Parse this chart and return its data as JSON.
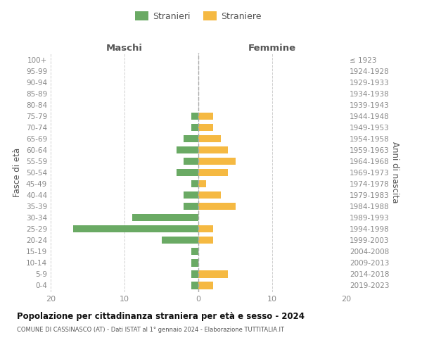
{
  "age_groups": [
    "100+",
    "95-99",
    "90-94",
    "85-89",
    "80-84",
    "75-79",
    "70-74",
    "65-69",
    "60-64",
    "55-59",
    "50-54",
    "45-49",
    "40-44",
    "35-39",
    "30-34",
    "25-29",
    "20-24",
    "15-19",
    "10-14",
    "5-9",
    "0-4"
  ],
  "birth_years": [
    "≤ 1923",
    "1924-1928",
    "1929-1933",
    "1934-1938",
    "1939-1943",
    "1944-1948",
    "1949-1953",
    "1954-1958",
    "1959-1963",
    "1964-1968",
    "1969-1973",
    "1974-1978",
    "1979-1983",
    "1984-1988",
    "1989-1993",
    "1994-1998",
    "1999-2003",
    "2004-2008",
    "2009-2013",
    "2014-2018",
    "2019-2023"
  ],
  "males": [
    0,
    0,
    0,
    0,
    0,
    1,
    1,
    2,
    3,
    2,
    3,
    1,
    2,
    2,
    9,
    17,
    5,
    1,
    1,
    1,
    1
  ],
  "females": [
    0,
    0,
    0,
    0,
    0,
    2,
    2,
    3,
    4,
    5,
    4,
    1,
    3,
    5,
    0,
    2,
    2,
    0,
    0,
    4,
    2
  ],
  "male_color": "#6aaa64",
  "female_color": "#f5b942",
  "title": "Popolazione per cittadinanza straniera per età e sesso - 2024",
  "subtitle": "COMUNE DI CASSINASCO (AT) - Dati ISTAT al 1° gennaio 2024 - Elaborazione TUTTITALIA.IT",
  "label_maschi": "Maschi",
  "label_femmine": "Femmine",
  "ylabel_left": "Fasce di età",
  "ylabel_right": "Anni di nascita",
  "legend_male": "Stranieri",
  "legend_female": "Straniere",
  "xlim": 20,
  "bg_color": "#ffffff",
  "grid_color": "#d0d0d0",
  "tick_color": "#888888",
  "label_color": "#555555",
  "title_color": "#111111"
}
